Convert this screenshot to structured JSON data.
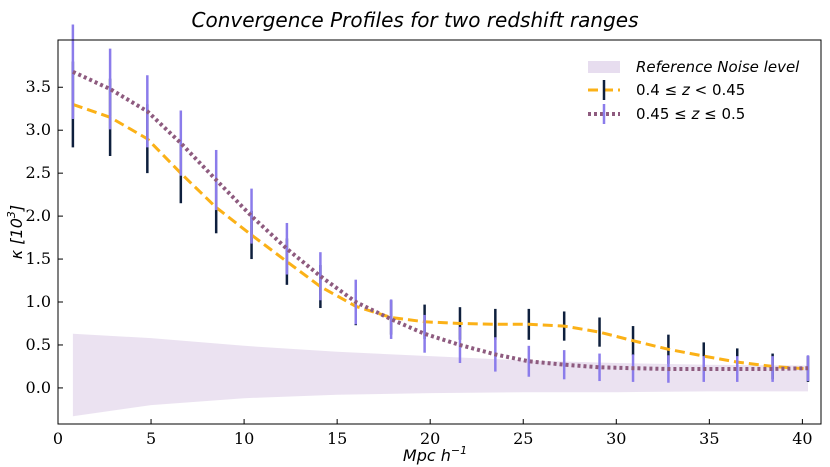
{
  "chart_data": {
    "type": "line",
    "title": "Convergence Profiles for two redshift ranges",
    "xlabel": "Mpc h^-1",
    "xlabel_base": "Mpc h",
    "xlabel_exp": "−1",
    "ylabel": "κ [10^3]",
    "ylabel_base": "κ [10",
    "ylabel_exp": "3",
    "ylabel_close": "]",
    "xlim": [
      0,
      41
    ],
    "ylim": [
      -0.42,
      4.05
    ],
    "xticks": [
      0,
      5,
      10,
      15,
      20,
      25,
      30,
      35,
      40
    ],
    "xtick_labels": [
      "0",
      "5",
      "10",
      "15",
      "20",
      "25",
      "30",
      "35",
      "40"
    ],
    "yticks": [
      0.0,
      0.5,
      1.0,
      1.5,
      2.0,
      2.5,
      3.0,
      3.5
    ],
    "ytick_labels": [
      "0.0",
      "0.5",
      "1.0",
      "1.5",
      "2.0",
      "2.5",
      "3.0",
      "3.5"
    ],
    "grid": false,
    "legend_position": "top-right",
    "x": [
      0.8,
      2.8,
      4.8,
      6.6,
      8.5,
      10.4,
      12.3,
      14.1,
      16.0,
      17.9,
      19.7,
      21.6,
      23.5,
      25.3,
      27.2,
      29.1,
      30.9,
      32.8,
      34.7,
      36.5,
      38.4,
      40.3
    ],
    "series": [
      {
        "name": "0.4 ≤ z < 0.45",
        "legend_prefix": "0.4 ≤ ",
        "legend_var": "z",
        "legend_suffix": " < 0.45",
        "style": "dashed",
        "color": "#FBB117",
        "errorbar_color": "#0E1F3D",
        "values": [
          3.3,
          3.15,
          2.9,
          2.5,
          2.1,
          1.78,
          1.47,
          1.18,
          0.95,
          0.82,
          0.77,
          0.75,
          0.74,
          0.74,
          0.72,
          0.65,
          0.55,
          0.45,
          0.37,
          0.3,
          0.25,
          0.22
        ],
        "errors": [
          0.5,
          0.45,
          0.4,
          0.35,
          0.3,
          0.28,
          0.27,
          0.25,
          0.22,
          0.2,
          0.2,
          0.19,
          0.18,
          0.18,
          0.17,
          0.17,
          0.17,
          0.17,
          0.16,
          0.16,
          0.15,
          0.15
        ]
      },
      {
        "name": "0.45 ≤ z ≤ 0.5",
        "legend_prefix": "0.45 ≤ ",
        "legend_var": "z",
        "legend_suffix": " ≤ 0.5",
        "style": "dotted",
        "color": "#8E5B7F",
        "errorbar_color": "#8B7CEB",
        "values": [
          3.68,
          3.48,
          3.22,
          2.85,
          2.42,
          2.0,
          1.62,
          1.3,
          1.0,
          0.8,
          0.63,
          0.5,
          0.39,
          0.31,
          0.27,
          0.24,
          0.23,
          0.22,
          0.22,
          0.22,
          0.22,
          0.23
        ],
        "errors": [
          0.55,
          0.47,
          0.42,
          0.38,
          0.35,
          0.32,
          0.3,
          0.28,
          0.26,
          0.23,
          0.22,
          0.21,
          0.2,
          0.18,
          0.17,
          0.16,
          0.16,
          0.16,
          0.15,
          0.15,
          0.15,
          0.15
        ]
      }
    ],
    "noise_band": {
      "name": "Reference Noise level",
      "color": "#E7DDEF",
      "x": [
        0.8,
        5,
        10,
        15,
        20,
        25,
        30,
        35,
        40.3
      ],
      "upper": [
        0.63,
        0.58,
        0.49,
        0.42,
        0.37,
        0.32,
        0.29,
        0.27,
        0.26
      ],
      "lower": [
        -0.33,
        -0.2,
        -0.12,
        -0.08,
        -0.06,
        -0.05,
        -0.05,
        -0.04,
        -0.04
      ]
    }
  }
}
